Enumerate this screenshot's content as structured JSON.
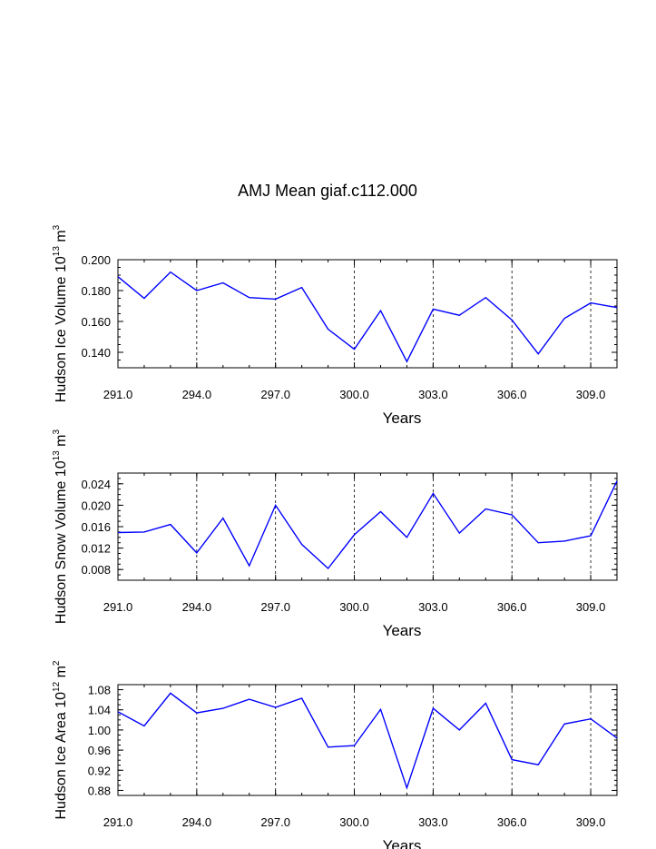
{
  "title": "AMJ Mean giaf.c112.000",
  "line_color": "#0000ff",
  "chart_data": [
    {
      "type": "line",
      "name": "ice-volume",
      "ylabel_text": "Hudson Ice Volume 10",
      "ylabel_exp": "13",
      "ylabel_unit": " m",
      "ylabel_unit_exp": "3",
      "xlabel": "Years",
      "xlim": [
        291,
        310
      ],
      "ylim": [
        0.13,
        0.2
      ],
      "xticks": [
        291,
        294,
        297,
        300,
        303,
        306,
        309
      ],
      "xtick_labels": [
        "291.0",
        "294.0",
        "297.0",
        "300.0",
        "303.0",
        "306.0",
        "309.0"
      ],
      "yticks": [
        0.14,
        0.16,
        0.18,
        0.2
      ],
      "ytick_labels": [
        "0.140",
        "0.160",
        "0.180",
        "0.200"
      ],
      "yminor_step": 0.005,
      "x": [
        291,
        292,
        293,
        294,
        295,
        296,
        297,
        298,
        299,
        300,
        301,
        302,
        303,
        304,
        305,
        306,
        307,
        308,
        309,
        310
      ],
      "values": [
        0.189,
        0.175,
        0.192,
        0.18,
        0.185,
        0.1755,
        0.1745,
        0.182,
        0.155,
        0.142,
        0.167,
        0.134,
        0.168,
        0.164,
        0.1755,
        0.161,
        0.139,
        0.162,
        0.172,
        0.169
      ]
    },
    {
      "type": "line",
      "name": "snow-volume",
      "ylabel_text": "Hudson Snow Volume 10",
      "ylabel_exp": "13",
      "ylabel_unit": " m",
      "ylabel_unit_exp": "3",
      "xlabel": "Years",
      "xlim": [
        291,
        310
      ],
      "ylim": [
        0.006,
        0.026
      ],
      "xticks": [
        291,
        294,
        297,
        300,
        303,
        306,
        309
      ],
      "xtick_labels": [
        "291.0",
        "294.0",
        "297.0",
        "300.0",
        "303.0",
        "306.0",
        "309.0"
      ],
      "yticks": [
        0.008,
        0.012,
        0.016,
        0.02,
        0.024
      ],
      "ytick_labels": [
        "0.008",
        "0.012",
        "0.016",
        "0.020",
        "0.024"
      ],
      "yminor_step": 0.001,
      "x": [
        291,
        292,
        293,
        294,
        295,
        296,
        297,
        298,
        299,
        300,
        301,
        302,
        303,
        304,
        305,
        306,
        307,
        308,
        309,
        310
      ],
      "values": [
        0.0149,
        0.015,
        0.0164,
        0.0111,
        0.0176,
        0.0087,
        0.02,
        0.0127,
        0.0082,
        0.0145,
        0.0188,
        0.014,
        0.0222,
        0.0148,
        0.0193,
        0.0182,
        0.013,
        0.0133,
        0.0143,
        0.0245
      ]
    },
    {
      "type": "line",
      "name": "ice-area",
      "ylabel_text": "Hudson Ice Area 10",
      "ylabel_exp": "12",
      "ylabel_unit": " m",
      "ylabel_unit_exp": "2",
      "xlabel": "Years",
      "xlim": [
        291,
        310
      ],
      "ylim": [
        0.87,
        1.09
      ],
      "xticks": [
        291,
        294,
        297,
        300,
        303,
        306,
        309
      ],
      "xtick_labels": [
        "291.0",
        "294.0",
        "297.0",
        "300.0",
        "303.0",
        "306.0",
        "309.0"
      ],
      "yticks": [
        0.88,
        0.92,
        0.96,
        1.0,
        1.04,
        1.08
      ],
      "ytick_labels": [
        "0.88",
        "0.92",
        "0.96",
        "1.00",
        "1.04",
        "1.08"
      ],
      "yminor_step": 0.01,
      "x": [
        291,
        292,
        293,
        294,
        295,
        296,
        297,
        298,
        299,
        300,
        301,
        302,
        303,
        304,
        305,
        306,
        307,
        308,
        309,
        310
      ],
      "values": [
        1.036,
        1.008,
        1.073,
        1.034,
        1.043,
        1.061,
        1.045,
        1.063,
        0.966,
        0.969,
        1.041,
        0.885,
        1.043,
        1.0,
        1.053,
        0.941,
        0.931,
        1.012,
        1.022,
        0.984
      ]
    }
  ]
}
